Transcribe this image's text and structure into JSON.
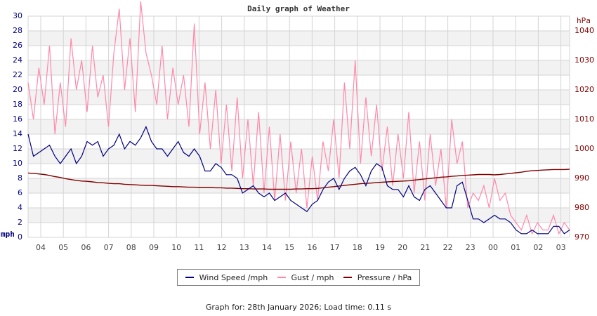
{
  "header": {
    "title": "Daily graph of Weather"
  },
  "axes": {
    "left_unit": "mph",
    "right_unit": "hPa",
    "left_ticks": [
      "0",
      "2",
      "4",
      "6",
      "8",
      "10",
      "12",
      "14",
      "16",
      "18",
      "20",
      "22",
      "24",
      "26",
      "28",
      "30"
    ],
    "right_ticks": [
      "970",
      "980",
      "990",
      "1000",
      "1010",
      "1020",
      "1030",
      "1040"
    ],
    "x_ticks": [
      "04",
      "05",
      "06",
      "07",
      "08",
      "09",
      "10",
      "11",
      "12",
      "13",
      "14",
      "15",
      "16",
      "17",
      "18",
      "19",
      "20",
      "21",
      "22",
      "23",
      "00",
      "01",
      "02",
      "03"
    ]
  },
  "legend": {
    "items": [
      {
        "label": "Wind Speed /mph",
        "color": "#000080"
      },
      {
        "label": "Gust / mph",
        "color": "#ff88aa"
      },
      {
        "label": "Pressure / hPa",
        "color": "#800000"
      }
    ]
  },
  "footer": {
    "text": "Graph for: 28th January 2026; Load time: 0.11 s"
  },
  "colors": {
    "wind": "#000080",
    "gust": "#ff88aa",
    "pressure": "#800000",
    "grid": "#d4d4d4",
    "band": "#f2f2f2"
  },
  "chart_data": {
    "type": "line",
    "title": "Daily graph of Weather",
    "xlabel": "",
    "ylabel": "mph",
    "ylabel_right": "hPa",
    "ylim": [
      0,
      30
    ],
    "ylim_right": [
      970,
      1045
    ],
    "grid": true,
    "legend_position": "bottom",
    "x_start_hour": 3.45,
    "x_step_hours": 0.25,
    "x": [
      "04",
      "05",
      "06",
      "07",
      "08",
      "09",
      "10",
      "11",
      "12",
      "13",
      "14",
      "15",
      "16",
      "17",
      "18",
      "19",
      "20",
      "21",
      "22",
      "23",
      "00",
      "01",
      "02",
      "03"
    ],
    "series": [
      {
        "name": "Wind Speed /mph",
        "axis": "left",
        "values": [
          14,
          11,
          11.5,
          12,
          12.5,
          11,
          10,
          11,
          12,
          10,
          11,
          13,
          12.5,
          13,
          11,
          12,
          12.5,
          14,
          12,
          13,
          12.5,
          13.5,
          15,
          13,
          12,
          12,
          11,
          12,
          13,
          11.5,
          11,
          12,
          11,
          9,
          9,
          10,
          9.5,
          8.5,
          8.5,
          8,
          6,
          6.5,
          7,
          6,
          5.5,
          6,
          5,
          5.5,
          6,
          5,
          4.5,
          4,
          3.5,
          4.5,
          5,
          6.5,
          7.5,
          8,
          6.5,
          8,
          9,
          9.5,
          8.5,
          7,
          9,
          10,
          9.5,
          7,
          6.5,
          6.5,
          5.5,
          7,
          5.5,
          5,
          6.5,
          7,
          6,
          5,
          4,
          4,
          7,
          7.5,
          5,
          2.5,
          2.5,
          2,
          2.5,
          3,
          2.5,
          2.5,
          2,
          1,
          0.5,
          0.5,
          1,
          0.5,
          0.5,
          0.5,
          1.5,
          1.5,
          0.5,
          1
        ]
      },
      {
        "name": "Gust / mph",
        "axis": "left",
        "values": [
          21,
          16,
          23,
          18,
          26,
          14,
          21,
          15,
          27,
          20,
          24,
          17,
          26,
          19,
          22,
          15,
          25,
          31,
          20,
          27,
          17,
          32,
          25,
          22,
          18,
          26,
          16,
          23,
          18,
          22,
          15,
          29,
          14,
          21,
          12,
          20,
          10,
          18,
          9,
          19,
          8,
          16,
          7,
          17,
          6,
          15,
          5,
          14,
          5,
          13,
          6,
          12,
          4,
          11,
          5,
          13,
          9,
          16,
          8,
          21,
          12,
          24,
          10,
          19,
          11,
          18,
          9,
          15,
          7,
          14,
          8,
          17,
          6,
          13,
          5,
          14,
          7,
          12,
          4,
          16,
          10,
          13,
          4,
          6,
          5,
          7,
          4,
          8,
          5,
          6,
          3,
          2,
          1,
          3,
          0.5,
          2,
          1,
          1,
          3,
          0.5,
          2,
          1
        ]
      },
      {
        "name": "Pressure / hPa",
        "axis": "right",
        "values": [
          991.8,
          991.7,
          991.5,
          991.3,
          991,
          990.6,
          990.3,
          989.9,
          989.6,
          989.3,
          989.1,
          989,
          988.8,
          988.6,
          988.5,
          988.3,
          988.2,
          988.2,
          988,
          987.9,
          987.8,
          987.7,
          987.6,
          987.6,
          987.5,
          987.4,
          987.3,
          987.2,
          987.2,
          987.1,
          987,
          987,
          986.9,
          986.9,
          986.9,
          986.8,
          986.8,
          986.7,
          986.7,
          986.6,
          986.5,
          986.5,
          986.4,
          986.4,
          986.4,
          986.3,
          986.3,
          986.3,
          986.3,
          986.3,
          986.4,
          986.4,
          986.5,
          986.5,
          986.6,
          986.8,
          987,
          987.2,
          987.4,
          987.6,
          987.8,
          988,
          988.2,
          988.3,
          988.4,
          988.6,
          988.7,
          988.8,
          988.9,
          989,
          989.1,
          989.2,
          989.4,
          989.6,
          989.8,
          990,
          990.2,
          990.4,
          990.5,
          990.7,
          990.8,
          991,
          991.1,
          991.2,
          991.3,
          991.3,
          991.3,
          991.2,
          991.3,
          991.5,
          991.7,
          991.9,
          992.1,
          992.4,
          992.6,
          992.7,
          992.8,
          992.9,
          993,
          993,
          993,
          993.1
        ]
      }
    ]
  }
}
